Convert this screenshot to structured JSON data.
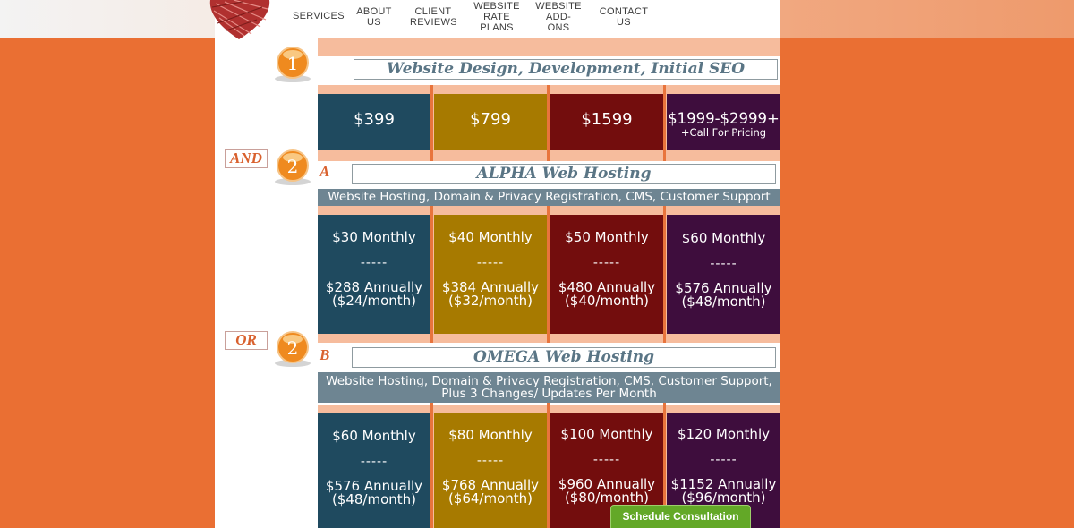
{
  "nav": {
    "items": [
      {
        "label": "SERVICES"
      },
      {
        "label": "ABOUT\nUS"
      },
      {
        "label": "CLIENT\nREVIEWS"
      },
      {
        "label": "WEBSITE\nRATE\nPLANS"
      },
      {
        "label": "WEBSITE\nADD-\nONS"
      },
      {
        "label": "CONTACT\nUS"
      }
    ]
  },
  "step1": {
    "number": "1",
    "title": "Website Design, Development, Initial SEO",
    "prices": [
      {
        "main": "$399"
      },
      {
        "main": "$799"
      },
      {
        "main": "$1599"
      },
      {
        "main": "$1999-$2999+",
        "note": "+Call For Pricing"
      }
    ]
  },
  "connector_and": "AND",
  "alpha": {
    "number": "2",
    "letter": "A",
    "title": "ALPHA Web Hosting",
    "subtitle": "Website Hosting, Domain & Privacy Registration, CMS, Customer Support",
    "plans": [
      {
        "monthly": "$30 Monthly",
        "dash": "-----",
        "annual": "$288 Annually",
        "per_month": "($24/month)"
      },
      {
        "monthly": "$40 Monthly",
        "dash": "-----",
        "annual": "$384 Annually",
        "per_month": "($32/month)"
      },
      {
        "monthly": "$50 Monthly",
        "dash": "-----",
        "annual": "$480 Annually",
        "per_month": "($40/month)"
      },
      {
        "monthly": "$60 Monthly",
        "dash": "-----",
        "annual": "$576 Annually",
        "per_month": "($48/month)"
      }
    ]
  },
  "connector_or": "OR",
  "omega": {
    "number": "2",
    "letter": "B",
    "title": "OMEGA Web Hosting",
    "subtitle_line1": "Website Hosting, Domain & Privacy Registration, CMS, Customer Support,",
    "subtitle_line2": "Plus 3 Changes/ Updates Per Month",
    "plans": [
      {
        "monthly": "$60 Monthly",
        "dash": "-----",
        "annual": "$576 Annually",
        "per_month": "($48/month)"
      },
      {
        "monthly": "$80 Monthly",
        "dash": "-----",
        "annual": "$768 Annually",
        "per_month": "($64/month)"
      },
      {
        "monthly": "$100 Monthly",
        "dash": "-----",
        "annual": "$960 Annually",
        "per_month": "($80/month)"
      },
      {
        "monthly": "$120 Monthly",
        "dash": "-----",
        "annual": "$1152 Annually",
        "per_month": "($96/month)"
      }
    ]
  },
  "cta": {
    "label": "Schedule Consultation"
  },
  "colors": {
    "teal": "#1f4a5f",
    "gold": "#a77a00",
    "red": "#730d0d",
    "purple": "#3e0d3d",
    "orange": "#ea6f33",
    "cta_green": "#63a827"
  }
}
